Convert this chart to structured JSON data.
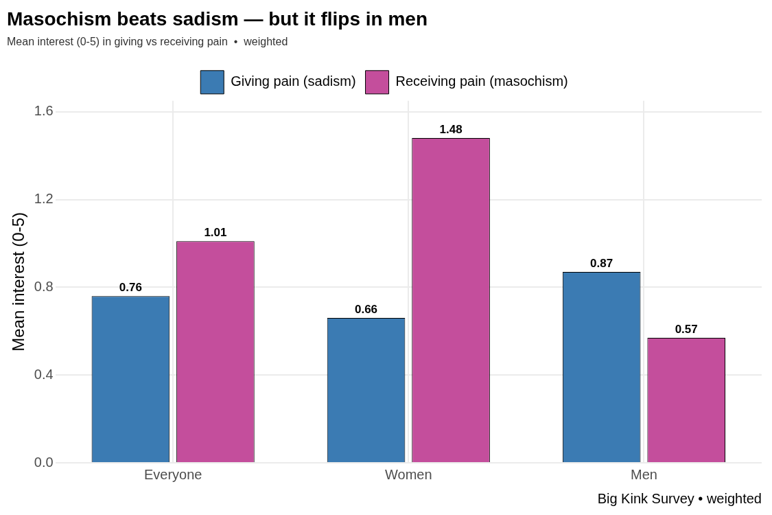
{
  "chart_data": {
    "type": "bar",
    "title": "Masochism beats sadism — but it flips in men",
    "subtitle": "Mean interest (0-5) in giving vs receiving pain  •  weighted",
    "ylabel": "Mean interest (0-5)",
    "categories": [
      "Everyone",
      "Women",
      "Men"
    ],
    "series": [
      {
        "name": "Giving pain (sadism)",
        "color": "#3b7bb3",
        "values": [
          0.76,
          0.66,
          0.87
        ]
      },
      {
        "name": "Receiving pain (masochism)",
        "color": "#c44e9c",
        "values": [
          1.01,
          1.48,
          0.57
        ]
      }
    ],
    "ylim": [
      0,
      1.65
    ],
    "yticks": [
      {
        "value": 0,
        "label": "0.0"
      },
      {
        "value": 0.4,
        "label": "0.4"
      },
      {
        "value": 0.8,
        "label": "0.8"
      },
      {
        "value": 1.2,
        "label": "1.2"
      },
      {
        "value": 1.6,
        "label": "1.6"
      }
    ],
    "grid": true,
    "legend": "top",
    "data_labels": true,
    "annotations": [
      "Big Kink Survey  •  weighted"
    ]
  }
}
